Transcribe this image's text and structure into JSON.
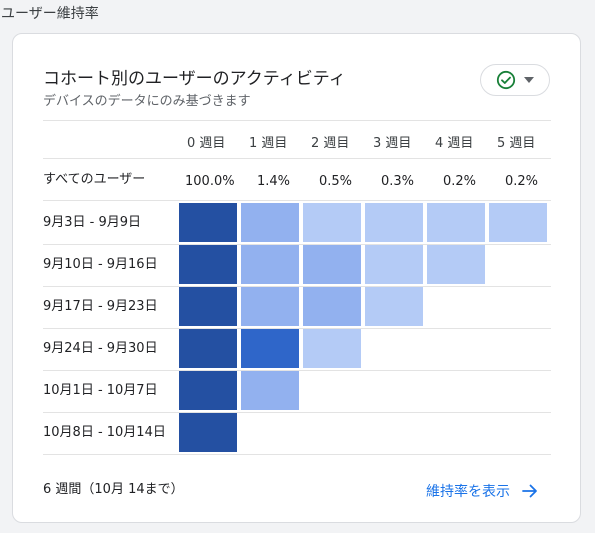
{
  "section": {
    "title": "ユーザー維持率"
  },
  "card": {
    "title": "コホート別のユーザーのアクティビティ",
    "subtitle": "デバイスのデータにのみ基づきます",
    "status_icon": "check-circle-icon",
    "status_dropdown_icon": "chevron-down-icon",
    "colors": {
      "accent": "#1a73e8",
      "status": "#188038"
    }
  },
  "table": {
    "columns": [
      "0 週目",
      "1 週目",
      "2 週目",
      "3 週目",
      "4 週目",
      "5 週目"
    ],
    "all_users": {
      "label": "すべてのユーザー",
      "values": [
        "100.0%",
        "1.4%",
        "0.5%",
        "0.3%",
        "0.2%",
        "0.2%"
      ]
    },
    "cohorts": [
      {
        "label": "9月3日 - 9月9日",
        "shades": [
          1,
          3,
          4,
          4,
          4,
          4
        ]
      },
      {
        "label": "9月10日 - 9月16日",
        "shades": [
          1,
          3,
          3,
          4,
          4
        ]
      },
      {
        "label": "9月17日 - 9月23日",
        "shades": [
          1,
          3,
          3,
          4
        ]
      },
      {
        "label": "9月24日 - 9月30日",
        "shades": [
          1,
          2,
          4
        ]
      },
      {
        "label": "10月1日 - 10月7日",
        "shades": [
          1,
          3
        ]
      },
      {
        "label": "10月8日 - 10月14日",
        "shades": [
          1
        ]
      }
    ],
    "shade_colors": {
      "1": "#2450a2",
      "2": "#2f66c9",
      "3": "#92b1ef",
      "4": "#b4cbf6"
    }
  },
  "footer": {
    "note": "6 週間（10月 14まで）",
    "link_label": "維持率を表示",
    "link_icon": "arrow-right-icon"
  }
}
